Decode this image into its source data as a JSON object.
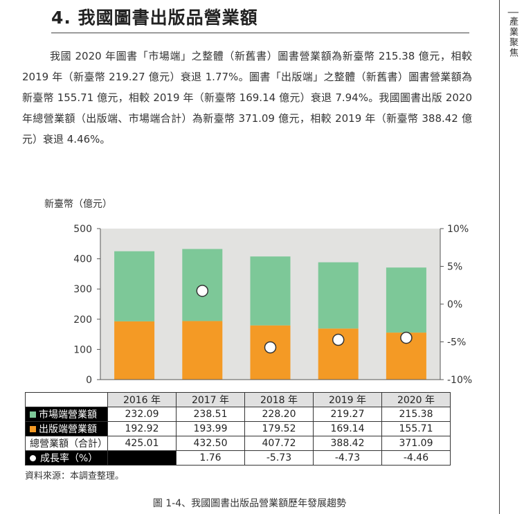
{
  "heading": "4. 我國圖書出版品營業額",
  "side_label": "│產業聚焦",
  "paragraph": "我國 2020 年圖書「市場端」之整體（新舊書）圖書營業額為新臺幣 215.38 億元，相較 2019 年（新臺幣 219.27 億元）衰退 1.77%。圖書「出版端」之整體（新舊書）圖書營業額為新臺幣 155.71 億元，相較 2019 年（新臺幣 169.14 億元）衰退 7.94%。我國圖書出版 2020 年總營業額（出版端、市場端合計）為新臺幣 371.09 億元，相較 2019 年（新臺幣 388.42 億元）衰退 4.46%。",
  "colors": {
    "market": "#7dc898",
    "publisher": "#f49a25",
    "plot_bg": "#e2e2e0"
  },
  "chart_data": {
    "type": "bar",
    "stacked": true,
    "ylabel": "新臺幣（億元）",
    "ylim": [
      0,
      500
    ],
    "y_ticks": [
      "0",
      "100",
      "200",
      "300",
      "400",
      "500"
    ],
    "y2lim": [
      -10,
      10
    ],
    "y2_ticks": [
      "-10%",
      "-5%",
      "0%",
      "5%",
      "10%"
    ],
    "categories": [
      "2016 年",
      "2017 年",
      "2018 年",
      "2019 年",
      "2020 年"
    ],
    "series": [
      {
        "name": "市場端營業額",
        "values": [
          232.09,
          238.51,
          228.2,
          219.27,
          215.38
        ]
      },
      {
        "name": "出版端營業額",
        "values": [
          192.92,
          193.99,
          179.52,
          169.14,
          155.71
        ]
      },
      {
        "name": "總營業額（合計）",
        "values": [
          425.01,
          432.5,
          407.72,
          388.42,
          371.09
        ]
      },
      {
        "name": "成長率（%）",
        "values": [
          null,
          1.76,
          -5.73,
          -4.73,
          -4.46
        ],
        "axis": "right"
      }
    ]
  },
  "table": {
    "rows": [
      {
        "label": "市場端營業額",
        "cells": [
          "232.09",
          "238.51",
          "228.20",
          "219.27",
          "215.38"
        ]
      },
      {
        "label": "出版端營業額",
        "cells": [
          "192.92",
          "193.99",
          "179.52",
          "169.14",
          "155.71"
        ]
      },
      {
        "label": "總營業額（合計）",
        "cells": [
          "425.01",
          "432.50",
          "407.72",
          "388.42",
          "371.09"
        ]
      },
      {
        "label": "成長率（%）",
        "cells": [
          "",
          "1.76",
          "-5.73",
          "-4.73",
          "-4.46"
        ]
      }
    ]
  },
  "source": "資料來源：本調查整理。",
  "caption": "圖 1-4、我國圖書出版品營業額歷年發展趨勢"
}
